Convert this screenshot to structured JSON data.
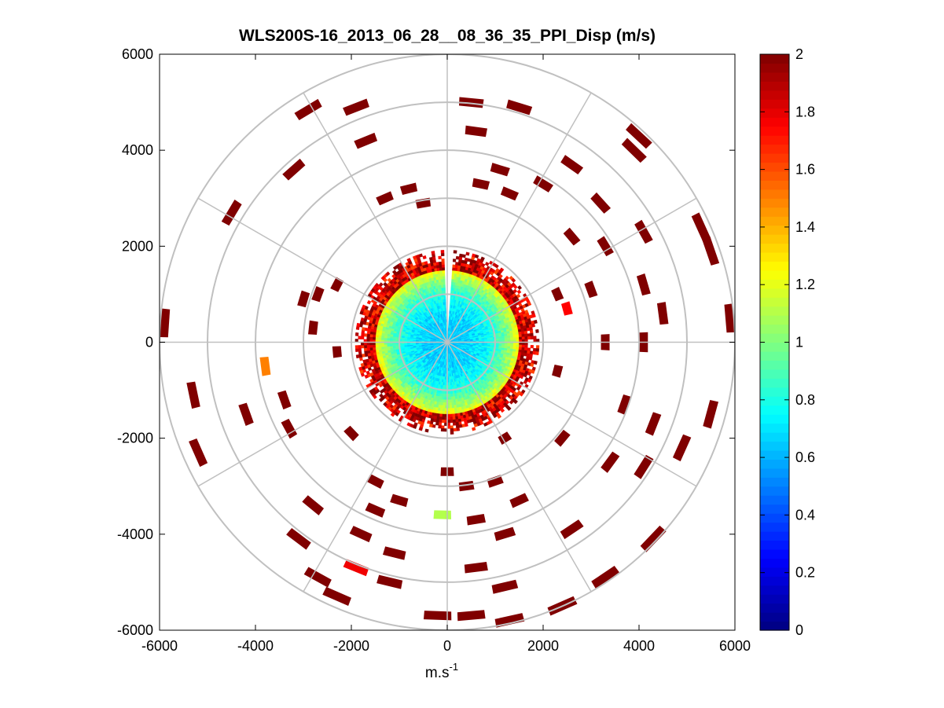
{
  "chart_data": {
    "type": "polar-ppi-heatmap",
    "title": "WLS200S-16_2013_06_28__08_36_35_PPI_Disp (m/s)",
    "xlabel": "m.s",
    "xlabel_sup": "-1",
    "ylabel": "",
    "xlim": [
      -6000,
      6000
    ],
    "ylim": [
      -6000,
      6000
    ],
    "x_ticks": [
      "-6000",
      "-4000",
      "-2000",
      "0",
      "2000",
      "4000",
      "6000"
    ],
    "y_ticks": [
      "6000",
      "4000",
      "2000",
      "0",
      "-2000",
      "-4000",
      "-6000"
    ],
    "x_tick_values": [
      -6000,
      -4000,
      -2000,
      0,
      2000,
      4000,
      6000
    ],
    "y_tick_values": [
      6000,
      4000,
      2000,
      0,
      -2000,
      -4000,
      -6000
    ],
    "range_rings": [
      1000,
      2000,
      3000,
      4000,
      5000,
      6000
    ],
    "spokes_deg": [
      0,
      30,
      60,
      90,
      120,
      150,
      180,
      210,
      240,
      270,
      300,
      330
    ],
    "colorbar": {
      "min": 0,
      "max": 2,
      "ticks": [
        "2",
        "1.8",
        "1.6",
        "1.4",
        "1.2",
        "1",
        "0.8",
        "0.6",
        "0.4",
        "0.2",
        "0"
      ],
      "tick_values": [
        2,
        1.8,
        1.6,
        1.4,
        1.2,
        1,
        0.8,
        0.6,
        0.4,
        0.2,
        0
      ],
      "colormap": "jet"
    },
    "core": {
      "max_range": 1900,
      "typical_value_center": 0.65,
      "typical_value_edge": 1.9,
      "gap_azimuth_deg": 0
    },
    "cells": [
      {
        "x": -2900,
        "y": 4850,
        "v": 2
      },
      {
        "x": -1900,
        "y": 4900,
        "v": 2
      },
      {
        "x": -1700,
        "y": 4200,
        "v": 2
      },
      {
        "x": -3200,
        "y": 3600,
        "v": 2
      },
      {
        "x": -4500,
        "y": 2700,
        "v": 2
      },
      {
        "x": -1300,
        "y": 3000,
        "v": 2
      },
      {
        "x": -800,
        "y": 3200,
        "v": 2
      },
      {
        "x": -500,
        "y": 2900,
        "v": 2
      },
      {
        "x": 500,
        "y": 5000,
        "v": 2
      },
      {
        "x": 600,
        "y": 4400,
        "v": 2
      },
      {
        "x": 1500,
        "y": 4900,
        "v": 2
      },
      {
        "x": 1100,
        "y": 3600,
        "v": 2
      },
      {
        "x": 700,
        "y": 3300,
        "v": 2
      },
      {
        "x": 1300,
        "y": 3100,
        "v": 2
      },
      {
        "x": 2000,
        "y": 3300,
        "v": 2
      },
      {
        "x": 2600,
        "y": 3700,
        "v": 2
      },
      {
        "x": 3900,
        "y": 4000,
        "v": 2
      },
      {
        "x": 4000,
        "y": 4300,
        "v": 2
      },
      {
        "x": 3200,
        "y": 2900,
        "v": 2
      },
      {
        "x": 2600,
        "y": 2200,
        "v": 2
      },
      {
        "x": 3300,
        "y": 2000,
        "v": 2
      },
      {
        "x": 4100,
        "y": 2300,
        "v": 2
      },
      {
        "x": 5300,
        "y": 2400,
        "v": 2
      },
      {
        "x": 5500,
        "y": 1900,
        "v": 2
      },
      {
        "x": 3000,
        "y": 1100,
        "v": 2
      },
      {
        "x": 2300,
        "y": 1000,
        "v": 2
      },
      {
        "x": 2500,
        "y": 700,
        "v": 1.75
      },
      {
        "x": 4100,
        "y": 1200,
        "v": 2
      },
      {
        "x": 4500,
        "y": 600,
        "v": 2
      },
      {
        "x": 5900,
        "y": 500,
        "v": 2
      },
      {
        "x": 3300,
        "y": 0,
        "v": 2
      },
      {
        "x": 4100,
        "y": 0,
        "v": 2
      },
      {
        "x": 2300,
        "y": -600,
        "v": 2
      },
      {
        "x": 3700,
        "y": -1300,
        "v": 2
      },
      {
        "x": 4300,
        "y": -1700,
        "v": 2
      },
      {
        "x": 5500,
        "y": -1500,
        "v": 2
      },
      {
        "x": 4900,
        "y": -2200,
        "v": 2
      },
      {
        "x": 3400,
        "y": -2500,
        "v": 2
      },
      {
        "x": 4100,
        "y": -2600,
        "v": 2
      },
      {
        "x": 2400,
        "y": -2000,
        "v": 2
      },
      {
        "x": 1200,
        "y": -2000,
        "v": 2
      },
      {
        "x": 1000,
        "y": -2900,
        "v": 2
      },
      {
        "x": 1500,
        "y": -3300,
        "v": 2
      },
      {
        "x": 2600,
        "y": -3900,
        "v": 2
      },
      {
        "x": 4300,
        "y": -4100,
        "v": 2
      },
      {
        "x": 3300,
        "y": -4900,
        "v": 2
      },
      {
        "x": 2400,
        "y": -5500,
        "v": 2
      },
      {
        "x": 1300,
        "y": -5800,
        "v": 2
      },
      {
        "x": 500,
        "y": -5700,
        "v": 2
      },
      {
        "x": -200,
        "y": -5700,
        "v": 2
      },
      {
        "x": 1200,
        "y": -5100,
        "v": 2
      },
      {
        "x": 600,
        "y": -4700,
        "v": 2
      },
      {
        "x": 1200,
        "y": -4000,
        "v": 2
      },
      {
        "x": 600,
        "y": -3700,
        "v": 2
      },
      {
        "x": 400,
        "y": -3000,
        "v": 2
      },
      {
        "x": 0,
        "y": -2700,
        "v": 2
      },
      {
        "x": -100,
        "y": -3600,
        "v": 1.1
      },
      {
        "x": -1000,
        "y": -3300,
        "v": 2
      },
      {
        "x": -1500,
        "y": -3500,
        "v": 2
      },
      {
        "x": -1800,
        "y": -4000,
        "v": 2
      },
      {
        "x": -1100,
        "y": -4400,
        "v": 2
      },
      {
        "x": -1900,
        "y": -4700,
        "v": 1.78
      },
      {
        "x": -1200,
        "y": -5000,
        "v": 2
      },
      {
        "x": -2300,
        "y": -5300,
        "v": 2
      },
      {
        "x": -2700,
        "y": -4900,
        "v": 2
      },
      {
        "x": -3100,
        "y": -4100,
        "v": 2
      },
      {
        "x": -2800,
        "y": -3400,
        "v": 2
      },
      {
        "x": -2000,
        "y": -1900,
        "v": 2
      },
      {
        "x": -1500,
        "y": -2900,
        "v": 2
      },
      {
        "x": -3300,
        "y": -1800,
        "v": 2
      },
      {
        "x": -3400,
        "y": -1200,
        "v": 2
      },
      {
        "x": -4200,
        "y": -1500,
        "v": 2
      },
      {
        "x": -5300,
        "y": -1100,
        "v": 2
      },
      {
        "x": -5200,
        "y": -2300,
        "v": 2
      },
      {
        "x": -5900,
        "y": 400,
        "v": 2
      },
      {
        "x": -3800,
        "y": -500,
        "v": 1.5
      },
      {
        "x": -2300,
        "y": -200,
        "v": 2
      },
      {
        "x": -2700,
        "y": 1000,
        "v": 2
      },
      {
        "x": -2300,
        "y": 1200,
        "v": 2
      },
      {
        "x": -2800,
        "y": 300,
        "v": 2
      },
      {
        "x": -3000,
        "y": 900,
        "v": 2
      }
    ]
  }
}
